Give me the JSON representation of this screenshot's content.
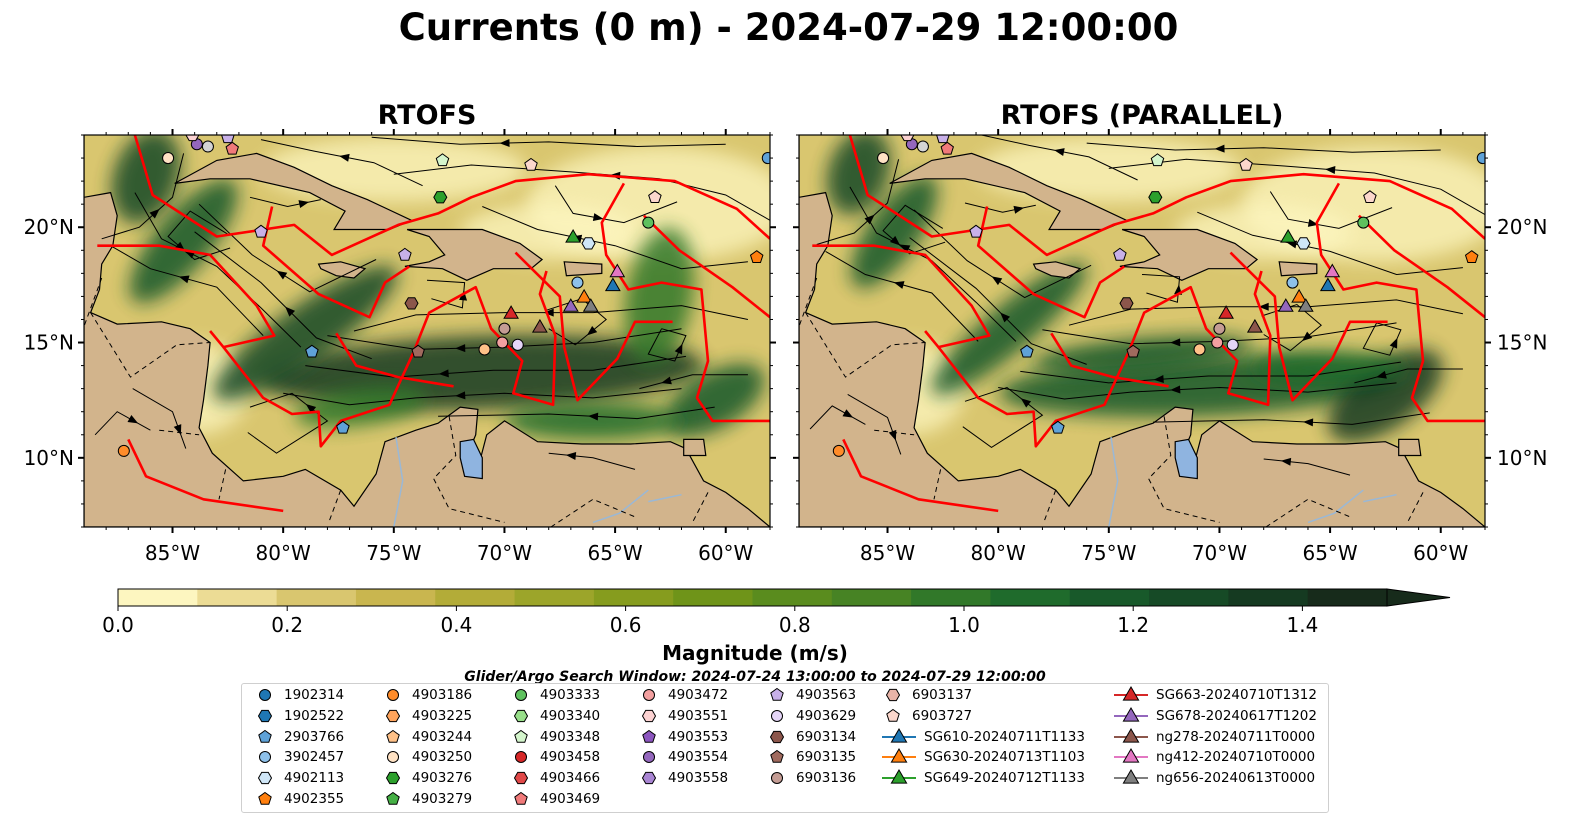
{
  "title": "Currents (0 m) - 2024-07-29 12:00:00",
  "panels": [
    {
      "title": "RTOFS",
      "variant": "rtofs"
    },
    {
      "title": "RTOFS (PARALLEL)",
      "variant": "parallel"
    }
  ],
  "map_extent": {
    "lon": [
      -89,
      -58
    ],
    "lat": [
      7,
      24
    ]
  },
  "lon_ticks": [
    {
      "value": -85,
      "label": "85°W"
    },
    {
      "value": -80,
      "label": "80°W"
    },
    {
      "value": -75,
      "label": "75°W"
    },
    {
      "value": -70,
      "label": "70°W"
    },
    {
      "value": -65,
      "label": "65°W"
    },
    {
      "value": -60,
      "label": "60°W"
    }
  ],
  "lat_ticks": [
    {
      "value": 20,
      "label": "20°N"
    },
    {
      "value": 15,
      "label": "15°N"
    },
    {
      "value": 10,
      "label": "10°N"
    }
  ],
  "colorbar": {
    "label": "Magnitude (m/s)",
    "range": [
      0,
      1.5
    ],
    "extend": "max",
    "tick_labels": [
      {
        "value": 0.0,
        "label": "0.0"
      },
      {
        "value": 0.2,
        "label": "0.2"
      },
      {
        "value": 0.4,
        "label": "0.4"
      },
      {
        "value": 0.6,
        "label": "0.6"
      },
      {
        "value": 0.8,
        "label": "0.8"
      },
      {
        "value": 1.0,
        "label": "1.0"
      },
      {
        "value": 1.2,
        "label": "1.2"
      },
      {
        "value": 1.4,
        "label": "1.4"
      }
    ],
    "colors": [
      "#fdf6c0",
      "#ecdc95",
      "#d9c66f",
      "#c9b64f",
      "#b3ac38",
      "#9ca52a",
      "#869c1e",
      "#6f9419",
      "#5a8c1e",
      "#478324",
      "#317829",
      "#1f6b2c",
      "#18592a",
      "#164a26",
      "#153a21",
      "#172b1b"
    ]
  },
  "search_window": "Glider/Argo Search Window: 2024-07-24 13:00:00 to 2024-07-29 12:00:00",
  "legend": {
    "columns": [
      [
        {
          "label": "1902314",
          "marker": "circle",
          "color": "#1f77b4"
        },
        {
          "label": "1902522",
          "marker": "hexagon",
          "color": "#1f77b4"
        },
        {
          "label": "2903766",
          "marker": "pentagon",
          "color": "#5fa2d8"
        },
        {
          "label": "3902457",
          "marker": "circle",
          "color": "#8ec1ea"
        },
        {
          "label": "4902113",
          "marker": "hexagon",
          "color": "#cfe6f7"
        },
        {
          "label": "4902355",
          "marker": "pentagon",
          "color": "#ff7f0e"
        }
      ],
      [
        {
          "label": "4903186",
          "marker": "circle",
          "color": "#ff8c2a"
        },
        {
          "label": "4903225",
          "marker": "hexagon",
          "color": "#ffa45c"
        },
        {
          "label": "4903244",
          "marker": "pentagon",
          "color": "#ffc188"
        },
        {
          "label": "4903250",
          "marker": "circle",
          "color": "#ffe2c4"
        },
        {
          "label": "4903276",
          "marker": "hexagon",
          "color": "#2ca02c"
        },
        {
          "label": "4903279",
          "marker": "pentagon",
          "color": "#45b045"
        }
      ],
      [
        {
          "label": "4903333",
          "marker": "circle",
          "color": "#5ec15e"
        },
        {
          "label": "4903340",
          "marker": "hexagon",
          "color": "#98df8a"
        },
        {
          "label": "4903348",
          "marker": "pentagon",
          "color": "#d4f5cc"
        },
        {
          "label": "4903458",
          "marker": "circle",
          "color": "#d62728"
        },
        {
          "label": "4903466",
          "marker": "hexagon",
          "color": "#e04848"
        },
        {
          "label": "4903469",
          "marker": "pentagon",
          "color": "#f07a7a"
        }
      ],
      [
        {
          "label": "4903472",
          "marker": "circle",
          "color": "#f3a0a0"
        },
        {
          "label": "4903551",
          "marker": "hexagon",
          "color": "#fcd2d2"
        },
        {
          "label": "4903553",
          "marker": "pentagon",
          "color": "#8c56bf"
        },
        {
          "label": "4903554",
          "marker": "circle",
          "color": "#9467bd"
        },
        {
          "label": "4903558",
          "marker": "hexagon",
          "color": "#a985d3"
        },
        {
          "label": "",
          "marker": "none",
          "color": "#ffffff"
        }
      ],
      [
        {
          "label": "4903563",
          "marker": "pentagon",
          "color": "#c8b0e8"
        },
        {
          "label": "4903629",
          "marker": "circle",
          "color": "#e5d5f7"
        },
        {
          "label": "6903134",
          "marker": "hexagon",
          "color": "#8c564b"
        },
        {
          "label": "6903135",
          "marker": "pentagon",
          "color": "#a06a5e"
        },
        {
          "label": "6903136",
          "marker": "circle",
          "color": "#c49c94"
        },
        {
          "label": "",
          "marker": "none",
          "color": "#ffffff"
        }
      ],
      [
        {
          "label": "6903137",
          "marker": "hexagon",
          "color": "#e8b4a8"
        },
        {
          "label": "6903727",
          "marker": "pentagon",
          "color": "#fcd7cc"
        },
        {
          "label": "SG610-20240711T1133",
          "marker": "triangle-line",
          "color": "#1f77b4"
        },
        {
          "label": "SG630-20240713T1103",
          "marker": "triangle-line",
          "color": "#ff7f0e"
        },
        {
          "label": "SG649-20240712T1133",
          "marker": "triangle-line",
          "color": "#2ca02c"
        },
        {
          "label": "",
          "marker": "none",
          "color": "#ffffff"
        }
      ],
      [
        {
          "label": "SG663-20240710T1312",
          "marker": "triangle-line",
          "color": "#d62728"
        },
        {
          "label": "SG678-20240617T1202",
          "marker": "triangle-line",
          "color": "#9467bd"
        },
        {
          "label": "ng278-20240711T0000",
          "marker": "triangle-line",
          "color": "#8c564b"
        },
        {
          "label": "ng412-20240710T0000",
          "marker": "triangle-line",
          "color": "#e377c2"
        },
        {
          "label": "ng656-20240613T0000",
          "marker": "triangle-line",
          "color": "#7f7f7f"
        },
        {
          "label": "",
          "marker": "none",
          "color": "#ffffff"
        }
      ]
    ]
  }
}
